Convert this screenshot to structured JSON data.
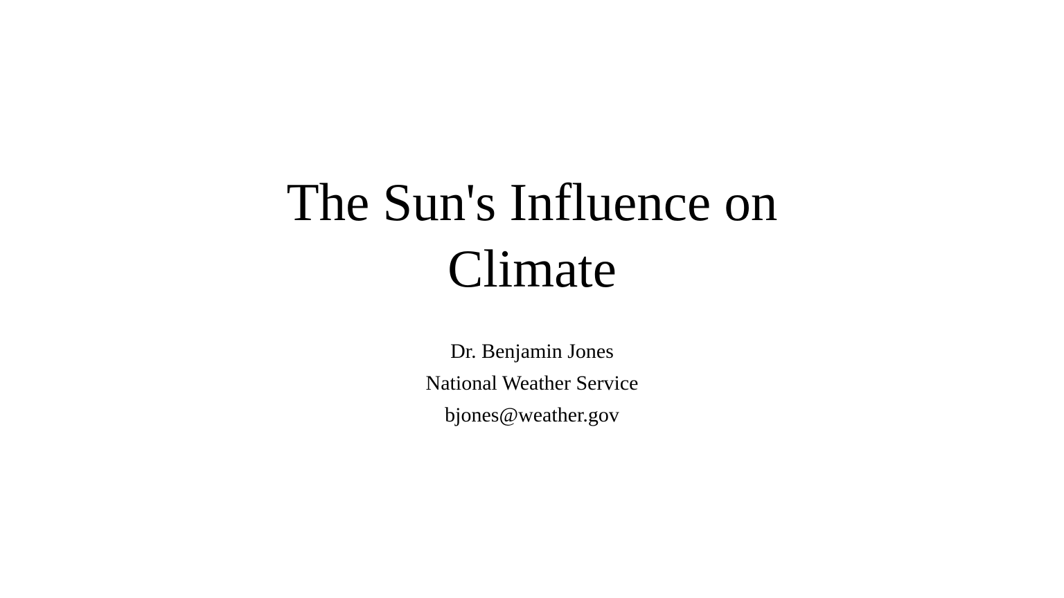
{
  "slide": {
    "title_lines": [
      "The Sun's Influence on",
      "Climate"
    ],
    "subtitle_lines": [
      "Dr. Benjamin Jones",
      "National Weather Service",
      "bjones@weather.gov"
    ]
  },
  "colors": {
    "background": "#ffffff",
    "text": "#000000"
  }
}
